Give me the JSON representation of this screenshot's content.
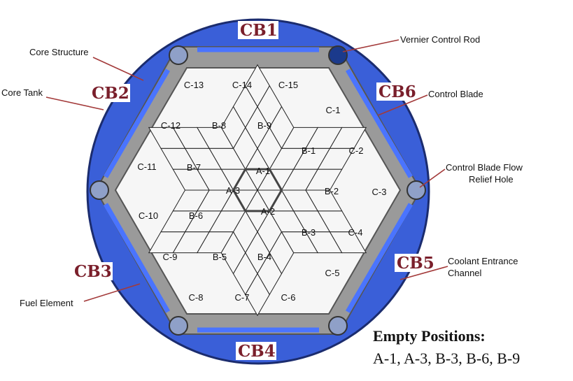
{
  "control_blades": [
    "CB1",
    "CB2",
    "CB3",
    "CB4",
    "CB5",
    "CB6"
  ],
  "fuel_positions": [
    "A-1",
    "A-2",
    "A-3",
    "B-1",
    "B-2",
    "B-3",
    "B-4",
    "B-5",
    "B-6",
    "B-7",
    "B-8",
    "B-9",
    "C-1",
    "C-2",
    "C-3",
    "C-4",
    "C-5",
    "C-6",
    "C-7",
    "C-8",
    "C-9",
    "C-10",
    "C-11",
    "C-12",
    "C-13",
    "C-14",
    "C-15"
  ],
  "callouts": {
    "vernier": "Vernier Control Rod",
    "core_structure": "Core Structure",
    "core_tank": "Core Tank",
    "control_blade": "Control Blade",
    "relief_1": "Control Blade Flow",
    "relief_2": "Relief Hole",
    "coolant_1": "Coolant Entrance",
    "coolant_2": "Channel",
    "fuel_element": "Fuel Element"
  },
  "empty_positions": {
    "heading": "Empty Positions:",
    "value": "A-1, A-3, B-3, B-6, B-9"
  },
  "colors": {
    "tank_blue": "#3a5fd8",
    "structure_gray": "#9a9a9a",
    "cell_fill": "#f6f6f6",
    "label_red": "#7a1f2b"
  }
}
